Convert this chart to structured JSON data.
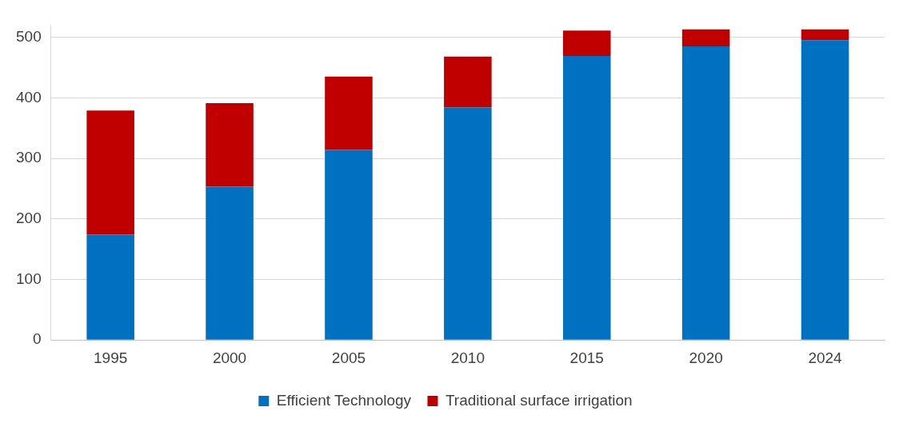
{
  "chart_data": {
    "type": "bar",
    "stacked": true,
    "categories": [
      "1995",
      "2000",
      "2005",
      "2010",
      "2015",
      "2020",
      "2024"
    ],
    "series": [
      {
        "name": "Efficient Technology",
        "color": "#0070c0",
        "values": [
          174,
          253,
          314,
          384,
          469,
          485,
          495
        ]
      },
      {
        "name": "Traditional surface irrigation",
        "color": "#c00000",
        "values": [
          205,
          138,
          121,
          84,
          42,
          28,
          18
        ]
      }
    ],
    "ylim": [
      0,
      520
    ],
    "yticks": [
      0,
      100,
      200,
      300,
      400,
      500
    ],
    "grid": "y",
    "legend": "bottom"
  }
}
